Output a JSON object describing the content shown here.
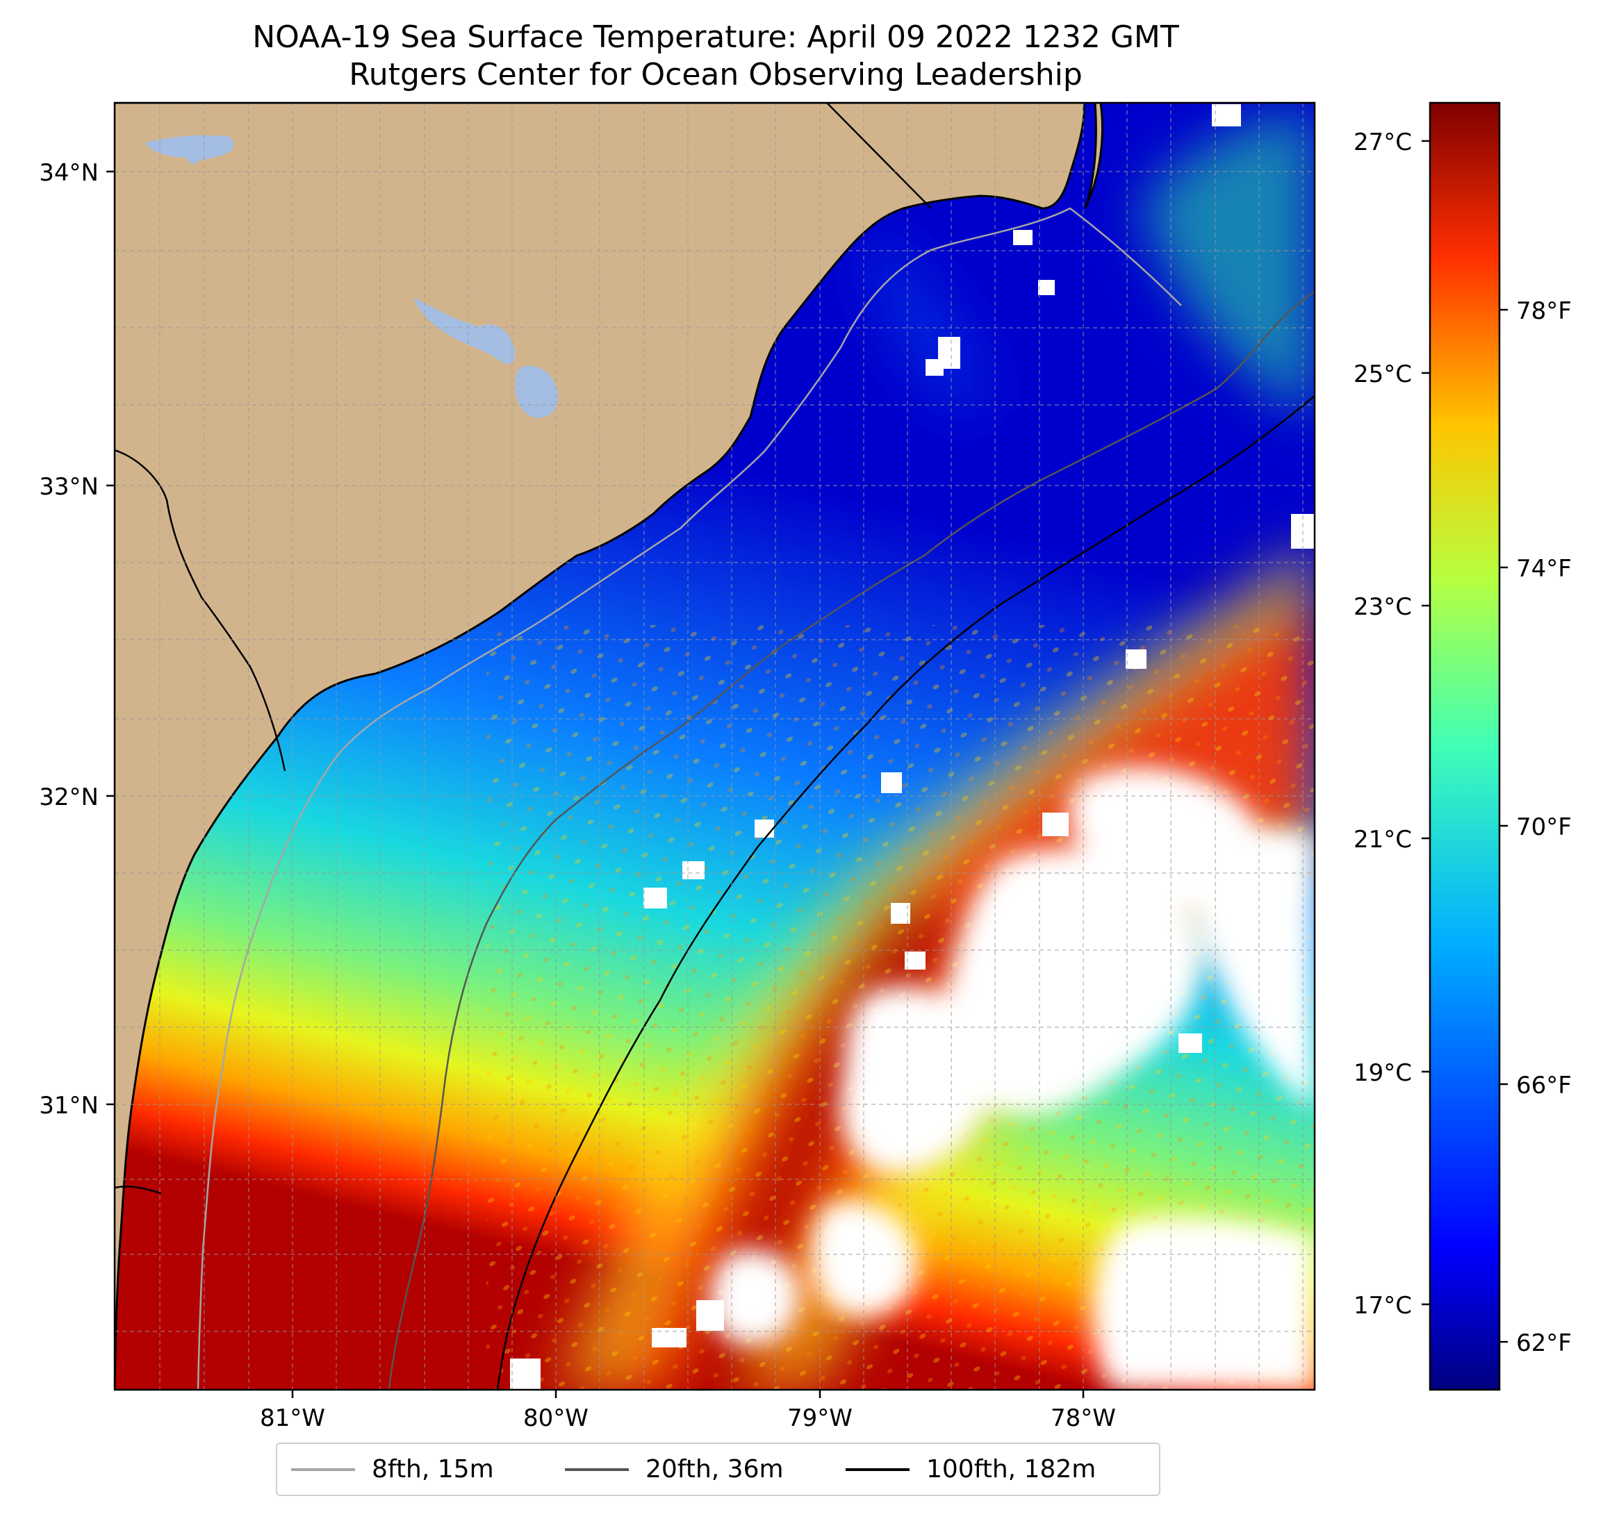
{
  "title": {
    "line1": "NOAA-19 Sea Surface Temperature: April 09 2022 1232 GMT",
    "line2": "Rutgers Center for Ocean Observing Leadership"
  },
  "map": {
    "latitude_labels": [
      "34°N",
      "33°N",
      "32°N",
      "31°N"
    ],
    "longitude_labels": [
      "81°W",
      "80°W",
      "79°W",
      "78°W"
    ],
    "colors": {
      "land": "#d2b48c",
      "lake": "#a4bde3",
      "coastline": "#000000",
      "grid": "#999999",
      "cloud_mask": "#ffffff"
    }
  },
  "colorbar": {
    "celsius_labels": [
      "27°C",
      "25°C",
      "23°C",
      "21°C",
      "19°C",
      "17°C"
    ],
    "fahrenheit_labels": [
      "78°F",
      "74°F",
      "70°F",
      "66°F",
      "62°F"
    ],
    "colormap": "jet"
  },
  "legend": {
    "items": [
      {
        "label": "8fth, 15m",
        "color": "#a6a6a6"
      },
      {
        "label": "20fth, 36m",
        "color": "#555555"
      },
      {
        "label": "100fth, 182m",
        "color": "#000000"
      }
    ]
  }
}
